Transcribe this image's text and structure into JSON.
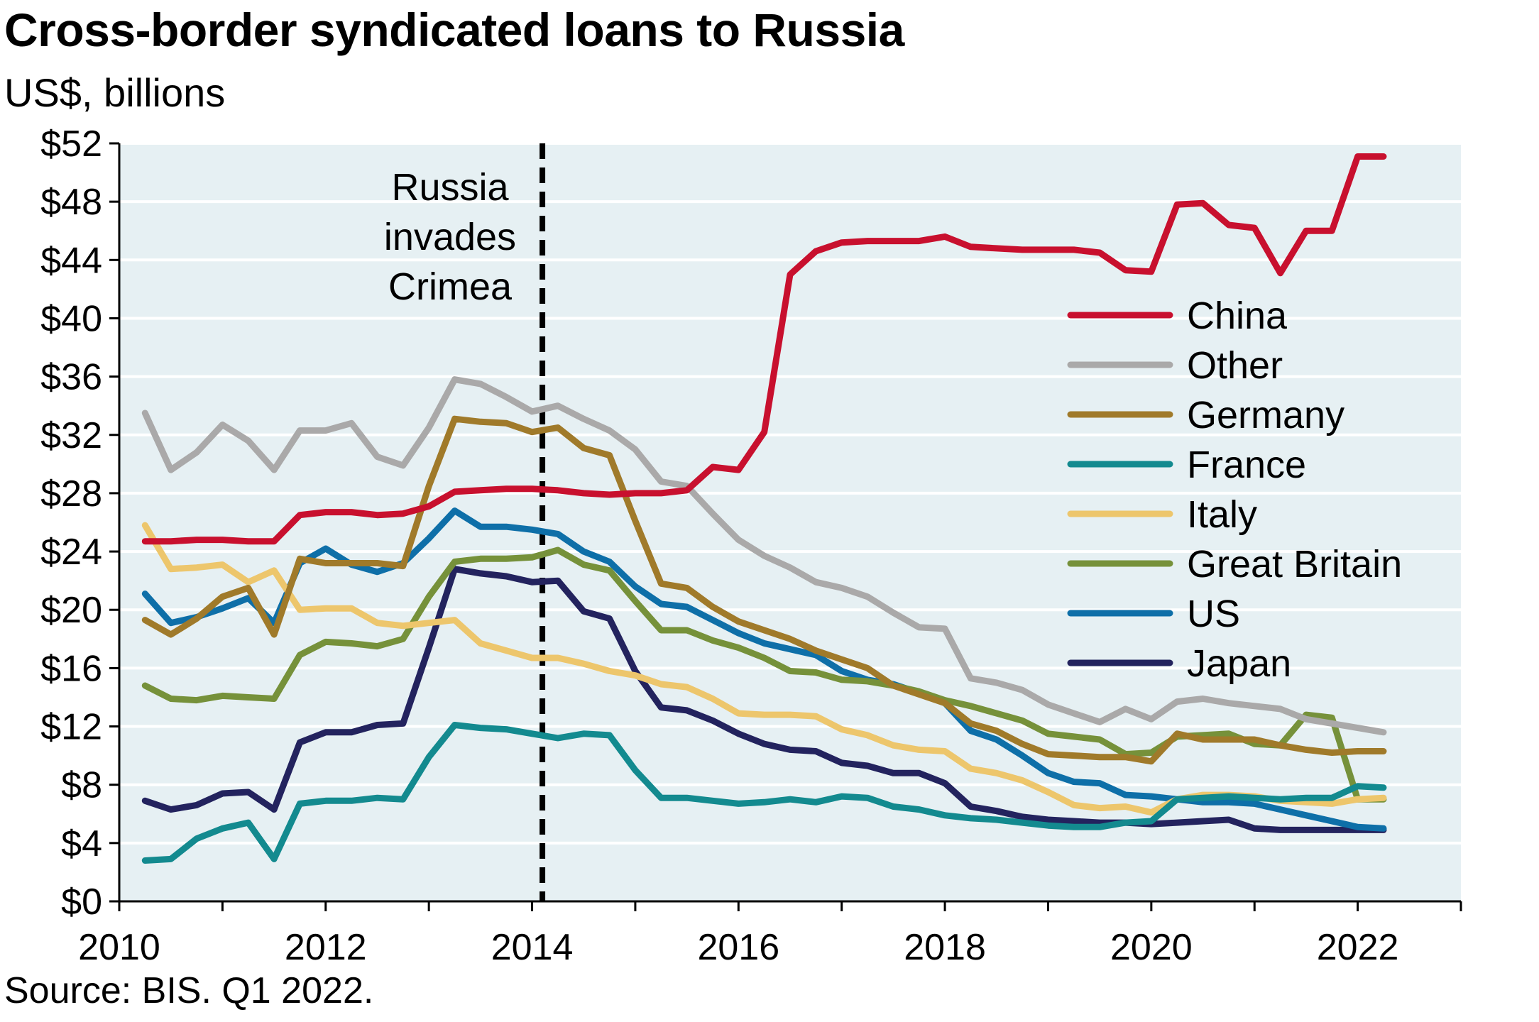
{
  "chart_data": {
    "type": "line",
    "title": "Cross-border syndicated loans to Russia",
    "subtitle": "US$, billions",
    "source": "Source: BIS. Q1 2022.",
    "xlabel": "",
    "ylabel": "",
    "xlim": [
      2010,
      2023
    ],
    "ylim": [
      0,
      52
    ],
    "x_ticks": [
      2010,
      2012,
      2014,
      2016,
      2018,
      2020,
      2022
    ],
    "x_tick_labels": [
      "2010",
      "2012",
      "2014",
      "2016",
      "2018",
      "2020",
      "2022"
    ],
    "y_ticks": [
      0,
      4,
      8,
      12,
      16,
      20,
      24,
      28,
      32,
      36,
      40,
      44,
      48,
      52
    ],
    "y_tick_labels": [
      "$0",
      "$4",
      "$8",
      "$12",
      "$16",
      "$20",
      "$24",
      "$28",
      "$32",
      "$36",
      "$40",
      "$44",
      "$48",
      "$52"
    ],
    "grid": "horizontal",
    "plot_background": "#e6f0f3",
    "legend_position": "right",
    "annotation": {
      "text_lines": [
        "Russia",
        "invades",
        "Crimea"
      ],
      "x": 2014.1,
      "line_style": "dashed"
    },
    "x": [
      2010.25,
      2010.5,
      2010.75,
      2011.0,
      2011.25,
      2011.5,
      2011.75,
      2012.0,
      2012.25,
      2012.5,
      2012.75,
      2013.0,
      2013.25,
      2013.5,
      2013.75,
      2014.0,
      2014.25,
      2014.5,
      2014.75,
      2015.0,
      2015.25,
      2015.5,
      2015.75,
      2016.0,
      2016.25,
      2016.5,
      2016.75,
      2017.0,
      2017.25,
      2017.5,
      2017.75,
      2018.0,
      2018.25,
      2018.5,
      2018.75,
      2019.0,
      2019.25,
      2019.5,
      2019.75,
      2020.0,
      2020.25,
      2020.5,
      2020.75,
      2021.0,
      2021.25,
      2021.5,
      2021.75,
      2022.0,
      2022.25
    ],
    "series": [
      {
        "name": "China",
        "color": "#c8102e",
        "values": [
          24.7,
          24.7,
          24.8,
          24.8,
          24.7,
          24.7,
          26.5,
          26.7,
          26.7,
          26.5,
          26.6,
          27.1,
          28.1,
          28.2,
          28.3,
          28.3,
          28.2,
          28.0,
          27.9,
          28.0,
          28.0,
          28.2,
          29.8,
          29.6,
          32.2,
          43.0,
          44.6,
          45.2,
          45.3,
          45.3,
          45.3,
          45.6,
          44.9,
          44.8,
          44.7,
          44.7,
          44.7,
          44.5,
          43.3,
          43.2,
          47.8,
          47.9,
          46.4,
          46.2,
          43.1,
          46.0,
          46.0,
          51.1,
          51.1
        ]
      },
      {
        "name": "Other",
        "color": "#aaa9a9",
        "values": [
          33.5,
          29.6,
          30.8,
          32.7,
          31.6,
          29.6,
          32.3,
          32.3,
          32.8,
          30.5,
          29.9,
          32.5,
          35.8,
          35.5,
          34.6,
          33.6,
          34.0,
          33.1,
          32.3,
          31.0,
          28.8,
          28.5,
          26.6,
          24.8,
          23.7,
          22.9,
          21.9,
          21.5,
          20.9,
          19.8,
          18.8,
          18.7,
          15.3,
          15.0,
          14.5,
          13.5,
          12.9,
          12.3,
          13.2,
          12.5,
          13.7,
          13.9,
          13.6,
          13.4,
          13.2,
          12.5,
          12.2,
          11.9,
          11.6
        ]
      },
      {
        "name": "Germany",
        "color": "#a07a2a",
        "values": [
          19.3,
          18.3,
          19.4,
          20.9,
          21.5,
          18.3,
          23.5,
          23.2,
          23.2,
          23.2,
          23.0,
          28.5,
          33.1,
          32.9,
          32.8,
          32.2,
          32.5,
          31.1,
          30.6,
          26.1,
          21.8,
          21.5,
          20.2,
          19.2,
          18.6,
          18.0,
          17.2,
          16.6,
          16.0,
          14.8,
          14.2,
          13.6,
          12.2,
          11.7,
          10.8,
          10.1,
          10.0,
          9.9,
          9.9,
          9.6,
          11.5,
          11.1,
          11.1,
          11.1,
          10.7,
          10.4,
          10.2,
          10.3,
          10.3
        ]
      },
      {
        "name": "France",
        "color": "#138a8f",
        "values": [
          2.8,
          2.9,
          4.3,
          5.0,
          5.4,
          2.9,
          6.7,
          6.9,
          6.9,
          7.1,
          7.0,
          9.9,
          12.1,
          11.9,
          11.8,
          11.5,
          11.2,
          11.5,
          11.4,
          9.0,
          7.1,
          7.1,
          6.9,
          6.7,
          6.8,
          7.0,
          6.8,
          7.2,
          7.1,
          6.5,
          6.3,
          5.9,
          5.7,
          5.6,
          5.4,
          5.2,
          5.1,
          5.1,
          5.4,
          5.5,
          7.0,
          7.1,
          7.2,
          7.1,
          7.0,
          7.1,
          7.1,
          7.9,
          7.8
        ]
      },
      {
        "name": "Italy",
        "color": "#edc66c",
        "values": [
          25.8,
          22.8,
          22.9,
          23.1,
          21.9,
          22.7,
          20.0,
          20.1,
          20.1,
          19.1,
          18.9,
          19.1,
          19.3,
          17.7,
          17.2,
          16.7,
          16.7,
          16.3,
          15.8,
          15.5,
          14.9,
          14.7,
          13.9,
          12.9,
          12.8,
          12.8,
          12.7,
          11.8,
          11.4,
          10.7,
          10.4,
          10.3,
          9.1,
          8.8,
          8.3,
          7.5,
          6.6,
          6.4,
          6.5,
          6.1,
          7.0,
          7.3,
          7.3,
          7.2,
          6.9,
          6.8,
          6.7,
          7.0,
          7.1
        ]
      },
      {
        "name": "Great Britain",
        "color": "#76913a",
        "values": [
          14.8,
          13.9,
          13.8,
          14.1,
          14.0,
          13.9,
          16.9,
          17.8,
          17.7,
          17.5,
          18.0,
          20.9,
          23.3,
          23.5,
          23.5,
          23.6,
          24.1,
          23.1,
          22.7,
          20.6,
          18.6,
          18.6,
          17.9,
          17.4,
          16.7,
          15.8,
          15.7,
          15.2,
          15.1,
          14.8,
          14.4,
          13.8,
          13.4,
          12.9,
          12.4,
          11.5,
          11.3,
          11.1,
          10.1,
          10.2,
          11.3,
          11.4,
          11.5,
          10.8,
          10.7,
          12.8,
          12.6,
          7.0,
          7.0
        ]
      },
      {
        "name": "US",
        "color": "#0e6fa8",
        "values": [
          21.1,
          19.1,
          19.5,
          20.1,
          20.8,
          19.1,
          23.2,
          24.2,
          23.1,
          22.6,
          23.2,
          24.9,
          26.8,
          25.7,
          25.7,
          25.5,
          25.2,
          24.0,
          23.3,
          21.6,
          20.4,
          20.2,
          19.3,
          18.4,
          17.7,
          17.3,
          16.9,
          15.8,
          15.2,
          14.9,
          14.3,
          13.6,
          11.7,
          11.1,
          10.0,
          8.8,
          8.2,
          8.1,
          7.3,
          7.2,
          7.0,
          6.8,
          6.8,
          6.7,
          6.3,
          5.9,
          5.5,
          5.1,
          5.0
        ]
      },
      {
        "name": "Japan",
        "color": "#23235e",
        "values": [
          6.9,
          6.3,
          6.6,
          7.4,
          7.5,
          6.3,
          10.9,
          11.6,
          11.6,
          12.1,
          12.2,
          17.4,
          22.8,
          22.5,
          22.3,
          21.9,
          22.0,
          19.9,
          19.4,
          15.8,
          13.3,
          13.1,
          12.4,
          11.5,
          10.8,
          10.4,
          10.3,
          9.5,
          9.3,
          8.8,
          8.8,
          8.1,
          6.5,
          6.2,
          5.8,
          5.6,
          5.5,
          5.4,
          5.4,
          5.3,
          5.4,
          5.5,
          5.6,
          5.0,
          4.9,
          4.9,
          4.9,
          4.9,
          4.9
        ]
      }
    ]
  }
}
